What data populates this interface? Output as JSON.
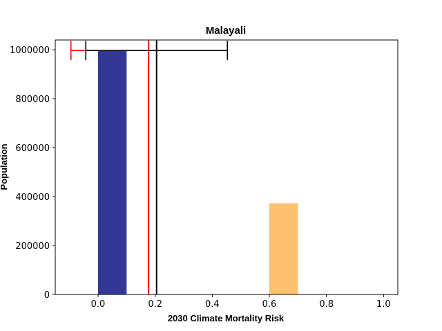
{
  "chart_data": {
    "type": "bar",
    "title": "Malayali",
    "xlabel": "2030 Climate Mortality Risk",
    "ylabel": "Population",
    "xlim": [
      -0.15,
      1.05
    ],
    "ylim": [
      0,
      1040000
    ],
    "xticks": [
      0.0,
      0.2,
      0.4,
      0.6,
      0.8,
      1.0
    ],
    "xtick_labels": [
      "0.0",
      "0.2",
      "0.4",
      "0.6",
      "0.8",
      "1.0"
    ],
    "yticks": [
      0,
      200000,
      400000,
      600000,
      800000,
      1000000
    ],
    "ytick_labels": [
      "0",
      "200000",
      "400000",
      "600000",
      "800000",
      "1000000"
    ],
    "bars": [
      {
        "x0": 0.0,
        "x1": 0.1,
        "value": 997000,
        "color": "#333895"
      },
      {
        "x0": 0.6,
        "x1": 0.7,
        "value": 373000,
        "color": "#fdc170"
      }
    ],
    "vertical_lines": [
      {
        "x": 0.177,
        "color": "#ff0000"
      },
      {
        "x": 0.205,
        "color": "#000000"
      }
    ],
    "error_bars": [
      {
        "center": 0.177,
        "low": -0.095,
        "high": 0.177,
        "y": 997000,
        "color": "#ff0000"
      },
      {
        "center": 0.205,
        "low": -0.043,
        "high": 0.453,
        "y": 997000,
        "color": "#000000"
      }
    ],
    "grid": false,
    "legend": "none"
  }
}
